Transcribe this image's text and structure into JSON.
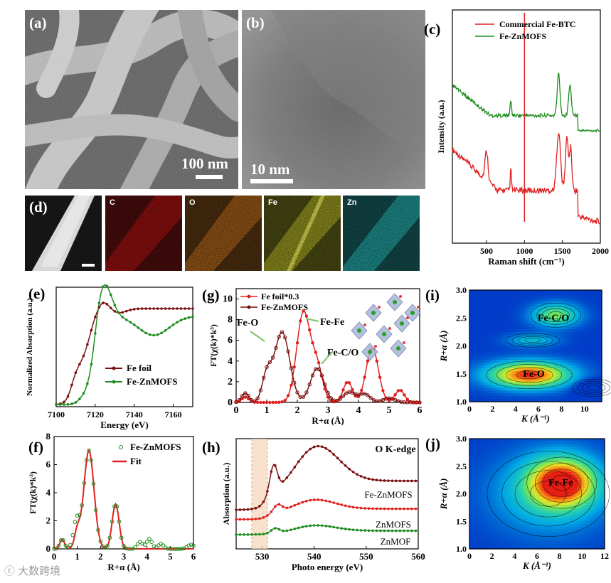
{
  "panels": {
    "a": {
      "label": "(a)",
      "scale": "100 nm"
    },
    "b": {
      "label": "(b)",
      "scale": "10 nm"
    },
    "c": {
      "label": "(c)"
    },
    "d": {
      "label": "(d)",
      "maps": [
        "C",
        "O",
        "Fe",
        "Zn"
      ]
    },
    "e": {
      "label": "(e)"
    },
    "f": {
      "label": "(f)"
    },
    "g": {
      "label": "(g)"
    },
    "h": {
      "label": "(h)"
    },
    "i": {
      "label": "(i)"
    },
    "j": {
      "label": "(j)"
    }
  },
  "colors": {
    "red": "#e02020",
    "green": "#1e8c1e",
    "darkred": "#7a0f0f",
    "map_C": "#c81414",
    "map_O": "#d2781e",
    "map_Fe": "#c8c828",
    "map_Zn": "#28c8c8"
  },
  "watermark": "大数跨境",
  "chart_data": [
    {
      "id": "c",
      "type": "line",
      "xlabel": "Raman shift (cm⁻¹)",
      "ylabel": "Intensity (a.u.)",
      "xlim": [
        50,
        2000
      ],
      "xticks": [
        500,
        1000,
        1500,
        2000
      ],
      "series": [
        {
          "name": "Commercial Fe-BTC",
          "color": "#e02020"
        },
        {
          "name": "Fe-ZnMOFS",
          "color": "#1e8c1e"
        }
      ]
    },
    {
      "id": "e",
      "type": "line",
      "xlabel": "Energy (eV)",
      "ylabel": "Normalized Absorption (a.u.)",
      "xlim": [
        7100,
        7170
      ],
      "xticks": [
        7100,
        7120,
        7140,
        7160
      ],
      "series": [
        {
          "name": "Fe foil",
          "color": "#7a0f0f"
        },
        {
          "name": "Fe-ZnMOFS",
          "color": "#1e8c1e"
        }
      ]
    },
    {
      "id": "g",
      "type": "line",
      "xlabel": "R+α (Å)",
      "ylabel": "FT(χ(k)*k³)",
      "xlim": [
        0,
        6
      ],
      "ylim": [
        0,
        11
      ],
      "xticks": [
        0,
        1,
        2,
        3,
        4,
        5,
        6
      ],
      "yticks": [
        0,
        2,
        4,
        6,
        8,
        10
      ],
      "series": [
        {
          "name": "Fe foil*0.3",
          "color": "#e02020"
        },
        {
          "name": "Fe-ZnMOFS",
          "color": "#7a0f0f"
        }
      ],
      "annotations": [
        "Fe-O",
        "Fe-Fe",
        "Fe-C/O"
      ]
    },
    {
      "id": "f",
      "type": "line",
      "xlabel": "R+α (Å)",
      "ylabel": "FT(χ(k)*k³)",
      "xlim": [
        0,
        6
      ],
      "ylim": [
        0,
        8
      ],
      "xticks": [
        0,
        1,
        2,
        3,
        4,
        5,
        6
      ],
      "yticks": [
        0,
        2,
        4,
        6,
        8
      ],
      "series": [
        {
          "name": "Fe-ZnMOFS",
          "color": "#1e8c1e"
        },
        {
          "name": "Fit",
          "color": "#e02020"
        }
      ]
    },
    {
      "id": "h",
      "type": "line",
      "xlabel": "Photo energy (eV)",
      "ylabel": "Absorption (a.u.)",
      "xlim": [
        525,
        560
      ],
      "xticks": [
        530,
        540,
        550,
        560
      ],
      "title": "O K-edge",
      "series": [
        {
          "name": "Fe-ZnMOFS",
          "color": "#7a0f0f"
        },
        {
          "name": "ZnMOFS",
          "color": "#e02020"
        },
        {
          "name": "ZnMOF",
          "color": "#1e8c1e"
        }
      ]
    },
    {
      "id": "i",
      "type": "heatmap",
      "xlabel": "K (Å⁻¹)",
      "ylabel": "R+α (Å)",
      "xlim": [
        0,
        11.5
      ],
      "ylim": [
        1.0,
        3.0
      ],
      "xticks": [
        0,
        2,
        4,
        6,
        8,
        10
      ],
      "yticks": [
        1.0,
        1.5,
        2.0,
        2.5,
        3.0
      ],
      "annotations": [
        "Fe-C/O",
        "Fe-O"
      ]
    },
    {
      "id": "j",
      "type": "heatmap",
      "xlabel": "K (Å⁻¹)",
      "ylabel": "R+α (Å)",
      "xlim": [
        0,
        12
      ],
      "ylim": [
        1.0,
        3.0
      ],
      "xticks": [
        0,
        2,
        4,
        6,
        8,
        10,
        12
      ],
      "yticks": [
        1.0,
        1.5,
        2.0,
        2.5,
        3.0
      ],
      "annotations": [
        "Fe-Fe"
      ]
    }
  ]
}
